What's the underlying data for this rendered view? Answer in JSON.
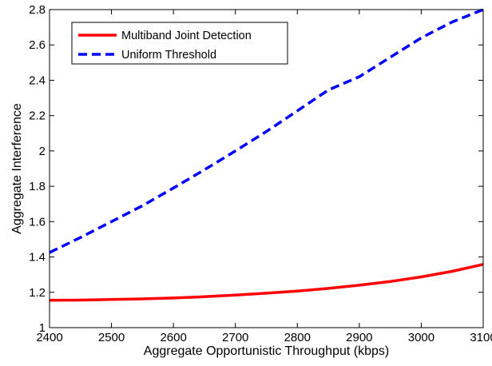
{
  "chart_data": {
    "type": "line",
    "title": "",
    "xlabel": "Aggregate Opportunistic Throughput (kbps)",
    "ylabel": "Aggregate Interference",
    "xlim": [
      2400,
      3100
    ],
    "ylim": [
      1,
      2.8
    ],
    "xticks": [
      2400,
      2500,
      2600,
      2700,
      2800,
      2900,
      3000,
      3100
    ],
    "yticks": [
      1,
      1.2,
      1.4,
      1.6,
      1.8,
      2,
      2.2,
      2.4,
      2.6,
      2.8
    ],
    "xtick_labels": [
      "2400",
      "2500",
      "2600",
      "2700",
      "2800",
      "2900",
      "3000",
      "3100"
    ],
    "ytick_labels": [
      "1",
      "1.2",
      "1.4",
      "1.6",
      "1.8",
      "2",
      "2.2",
      "2.4",
      "2.6",
      "2.8"
    ],
    "grid": false,
    "legend_position": "top-left",
    "series": [
      {
        "name": "Multiband Joint Detection",
        "color": "#ff0000",
        "line_style": "solid",
        "x": [
          2400,
          2450,
          2500,
          2550,
          2600,
          2650,
          2700,
          2750,
          2800,
          2850,
          2900,
          2950,
          3000,
          3050,
          3100
        ],
        "y": [
          1.155,
          1.156,
          1.159,
          1.163,
          1.168,
          1.175,
          1.184,
          1.195,
          1.207,
          1.222,
          1.24,
          1.261,
          1.287,
          1.319,
          1.358
        ]
      },
      {
        "name": "Uniform Threshold",
        "color": "#0000ff",
        "line_style": "dashed",
        "x": [
          2400,
          2450,
          2500,
          2550,
          2600,
          2650,
          2700,
          2750,
          2800,
          2850,
          2900,
          2950,
          3000,
          3050,
          3100
        ],
        "y": [
          1.425,
          1.51,
          1.6,
          1.69,
          1.79,
          1.893,
          2.0,
          2.11,
          2.227,
          2.345,
          2.42,
          2.53,
          2.64,
          2.73,
          2.8
        ]
      }
    ]
  }
}
